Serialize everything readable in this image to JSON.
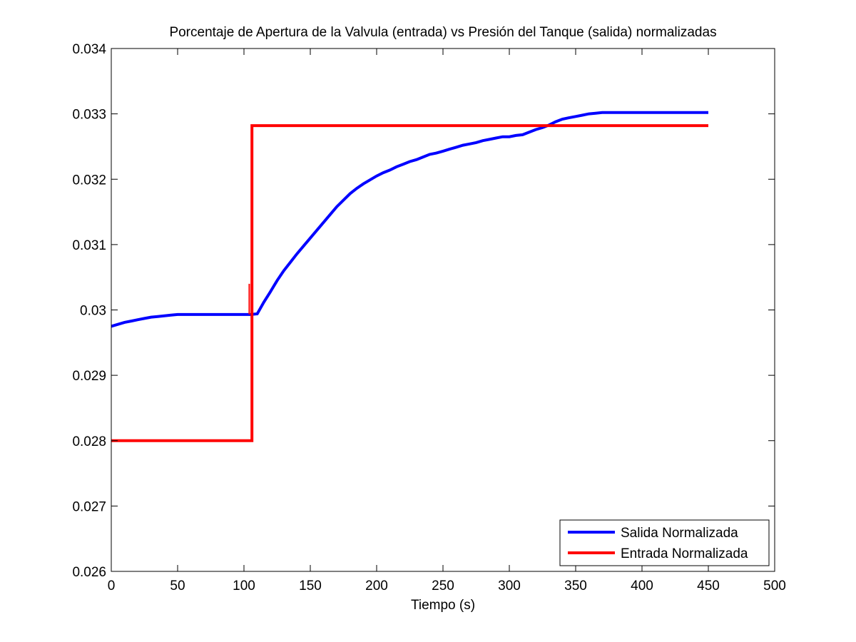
{
  "chart_data": {
    "type": "line",
    "title": "Porcentaje de Apertura de la Valvula (entrada) vs Presión del Tanque (salida) normalizadas",
    "xlabel": "Tiempo (s)",
    "ylabel": "",
    "xlim": [
      0,
      500
    ],
    "ylim": [
      0.026,
      0.034
    ],
    "xticks": [
      0,
      50,
      100,
      150,
      200,
      250,
      300,
      350,
      400,
      450,
      500
    ],
    "xtick_labels": [
      "0",
      "50",
      "100",
      "150",
      "200",
      "250",
      "300",
      "350",
      "400",
      "450",
      "500"
    ],
    "yticks": [
      0.026,
      0.027,
      0.028,
      0.029,
      0.03,
      0.031,
      0.032,
      0.033,
      0.034
    ],
    "ytick_labels": [
      "0.026",
      "0.027",
      "0.028",
      "0.029",
      "0.03",
      "0.031",
      "0.032",
      "0.033",
      "0.034"
    ],
    "grid": false,
    "legend_position": "bottom-right",
    "series": [
      {
        "name": "Salida Normalizada",
        "color": "#0000ff",
        "x": [
          0,
          5,
          10,
          15,
          20,
          25,
          30,
          35,
          40,
          45,
          50,
          60,
          70,
          80,
          90,
          100,
          105,
          110,
          115,
          120,
          125,
          130,
          135,
          140,
          145,
          150,
          155,
          160,
          165,
          170,
          175,
          180,
          185,
          190,
          195,
          200,
          205,
          210,
          215,
          220,
          225,
          230,
          235,
          240,
          245,
          250,
          255,
          260,
          265,
          270,
          275,
          280,
          285,
          290,
          295,
          300,
          305,
          310,
          315,
          320,
          325,
          330,
          335,
          340,
          345,
          350,
          355,
          360,
          365,
          370,
          380,
          390,
          400,
          410,
          420,
          430,
          440,
          450
        ],
        "y": [
          0.02975,
          0.02978,
          0.02981,
          0.02983,
          0.02985,
          0.02987,
          0.02989,
          0.0299,
          0.02991,
          0.02992,
          0.02993,
          0.02993,
          0.02993,
          0.02993,
          0.02993,
          0.02993,
          0.02993,
          0.02994,
          0.03012,
          0.03028,
          0.03045,
          0.0306,
          0.03073,
          0.03086,
          0.03098,
          0.0311,
          0.03122,
          0.03134,
          0.03146,
          0.03158,
          0.03168,
          0.03178,
          0.03186,
          0.03193,
          0.03199,
          0.03205,
          0.0321,
          0.03214,
          0.03219,
          0.03223,
          0.03227,
          0.0323,
          0.03234,
          0.03238,
          0.0324,
          0.03243,
          0.03246,
          0.03249,
          0.03252,
          0.03254,
          0.03256,
          0.03259,
          0.03261,
          0.03263,
          0.03265,
          0.03265,
          0.03267,
          0.03268,
          0.03272,
          0.03276,
          0.03279,
          0.03283,
          0.03288,
          0.03292,
          0.03294,
          0.03296,
          0.03298,
          0.033,
          0.03301,
          0.03302,
          0.03302,
          0.03302,
          0.03302,
          0.03302,
          0.03302,
          0.03302,
          0.03302,
          0.03302
        ]
      },
      {
        "name": "Entrada Normalizada",
        "color": "#ff0000",
        "x": [
          0,
          106,
          106,
          450
        ],
        "y": [
          0.028,
          0.028,
          0.03282,
          0.03282
        ],
        "spike": {
          "x": 104,
          "y_from": 0.02993,
          "y_to": 0.0304
        }
      }
    ]
  }
}
